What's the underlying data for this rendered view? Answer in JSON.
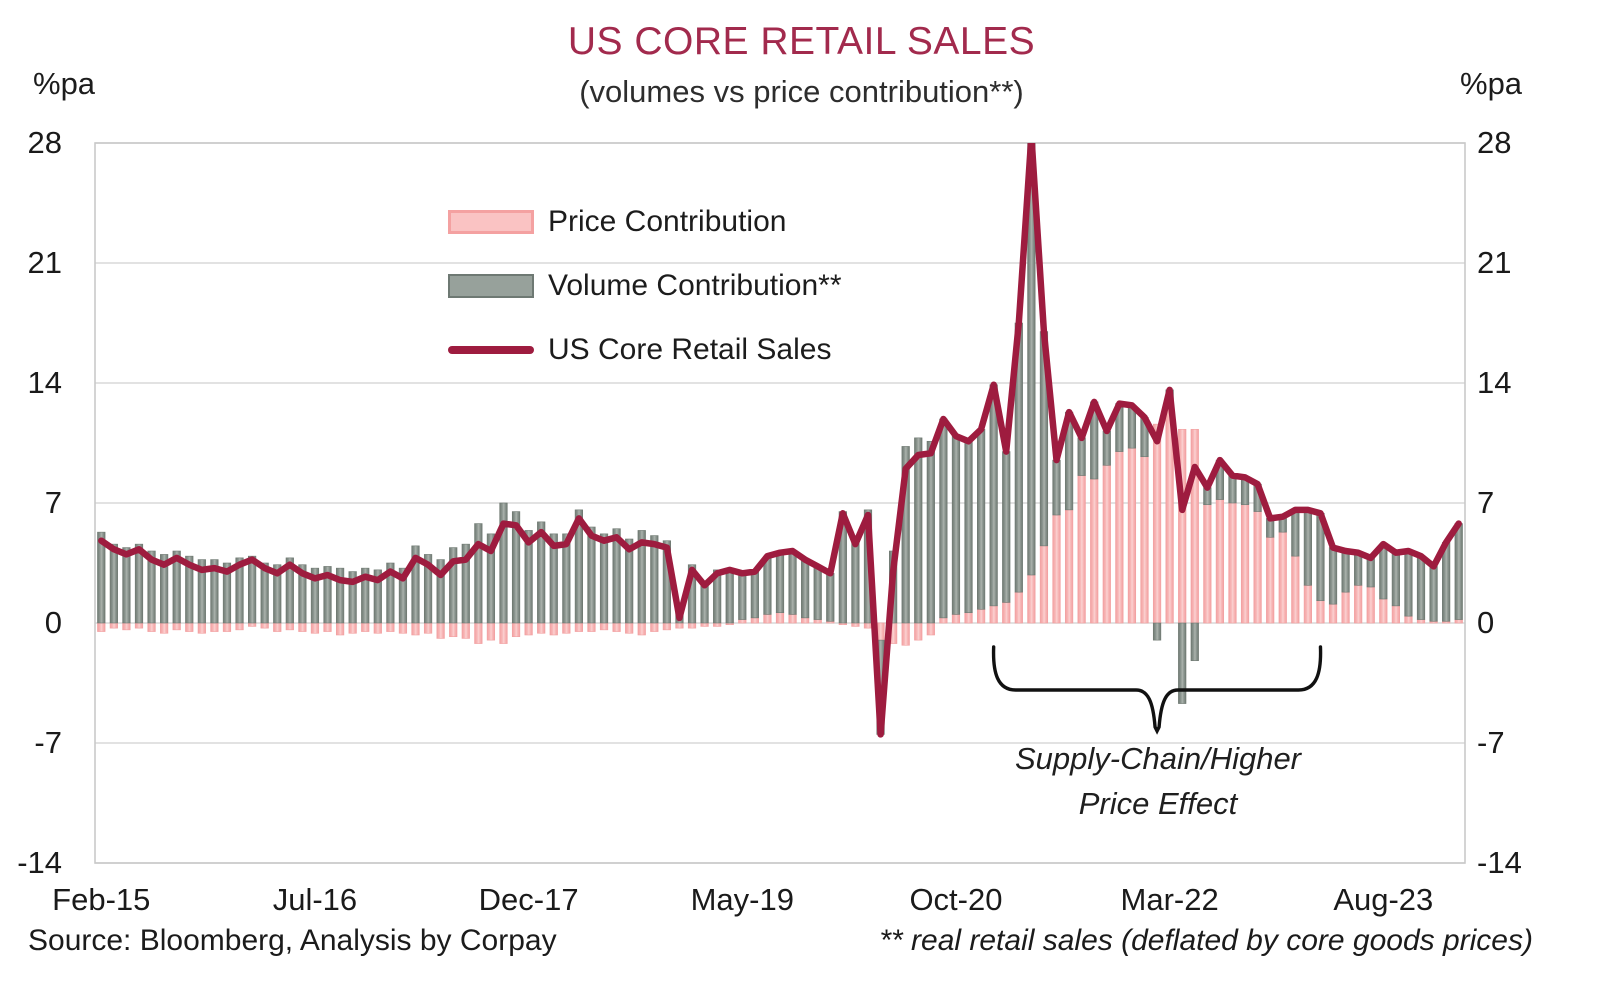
{
  "footer": {
    "source": "Source: Bloomberg, Analysis by Corpay",
    "footnote": "** real retail sales (deflated by core goods prices)"
  },
  "chart_data": {
    "type": "combo",
    "title": "US CORE RETAIL SALES",
    "subtitle": "(volumes vs price contribution**)",
    "ylabel_left": "%pa",
    "ylabel_right": "%pa",
    "ylim": [
      -14,
      28
    ],
    "yticks": [
      28,
      21,
      14,
      7,
      0,
      -7,
      -14
    ],
    "grid": "horizontal",
    "legend_position": "inside-top-left-of-plot",
    "colors": {
      "price_fill": "#F8B9B9",
      "price_edge": "#F2A0A1",
      "price_light": "#FBD2D2",
      "volume_fill": "#8F9993",
      "volume_edge": "#6F7972",
      "volume_light": "#ACB3AD",
      "line": "#9E1C3F",
      "title": "#A22A4D",
      "grid": "#D8D8D8",
      "border": "#C9C9C9",
      "annotation": "#111111"
    },
    "months": [
      "Feb-15",
      "Mar-15",
      "Apr-15",
      "May-15",
      "Jun-15",
      "Jul-15",
      "Aug-15",
      "Sep-15",
      "Oct-15",
      "Nov-15",
      "Dec-15",
      "Jan-16",
      "Feb-16",
      "Mar-16",
      "Apr-16",
      "May-16",
      "Jun-16",
      "Jul-16",
      "Aug-16",
      "Sep-16",
      "Oct-16",
      "Nov-16",
      "Dec-16",
      "Jan-17",
      "Feb-17",
      "Mar-17",
      "Apr-17",
      "May-17",
      "Jun-17",
      "Jul-17",
      "Aug-17",
      "Sep-17",
      "Oct-17",
      "Nov-17",
      "Dec-17",
      "Jan-18",
      "Feb-18",
      "Mar-18",
      "Apr-18",
      "May-18",
      "Jun-18",
      "Jul-18",
      "Aug-18",
      "Sep-18",
      "Oct-18",
      "Nov-18",
      "Dec-18",
      "Jan-19",
      "Feb-19",
      "Mar-19",
      "Apr-19",
      "May-19",
      "Jun-19",
      "Jul-19",
      "Aug-19",
      "Sep-19",
      "Oct-19",
      "Nov-19",
      "Dec-19",
      "Jan-20",
      "Feb-20",
      "Mar-20",
      "Apr-20",
      "May-20",
      "Jun-20",
      "Jul-20",
      "Aug-20",
      "Sep-20",
      "Oct-20",
      "Nov-20",
      "Dec-20",
      "Jan-21",
      "Feb-21",
      "Mar-21",
      "Apr-21",
      "May-21",
      "Jun-21",
      "Jul-21",
      "Aug-21",
      "Sep-21",
      "Oct-21",
      "Nov-21",
      "Dec-21",
      "Jan-22",
      "Feb-22",
      "Mar-22",
      "Apr-22",
      "May-22",
      "Jun-22",
      "Jul-22",
      "Aug-22",
      "Sep-22",
      "Oct-22",
      "Nov-22",
      "Dec-22",
      "Jan-23",
      "Feb-23",
      "Mar-23",
      "Apr-23",
      "May-23",
      "Jun-23",
      "Jul-23",
      "Aug-23",
      "Sep-23",
      "Oct-23",
      "Nov-23",
      "Dec-23",
      "Jan-24",
      "Feb-24"
    ],
    "xtick_indices": [
      0,
      17,
      34,
      51,
      68,
      85,
      102
    ],
    "xtick_labels": [
      "Feb-15",
      "Jul-16",
      "Dec-17",
      "May-19",
      "Oct-20",
      "Mar-22",
      "Aug-23"
    ],
    "series": [
      {
        "name": "Price Contribution",
        "type": "bar",
        "values": [
          -0.5,
          -0.3,
          -0.4,
          -0.3,
          -0.5,
          -0.6,
          -0.4,
          -0.5,
          -0.6,
          -0.5,
          -0.5,
          -0.4,
          -0.2,
          -0.3,
          -0.5,
          -0.4,
          -0.5,
          -0.6,
          -0.5,
          -0.7,
          -0.6,
          -0.5,
          -0.6,
          -0.5,
          -0.6,
          -0.7,
          -0.6,
          -0.9,
          -0.8,
          -0.9,
          -1.2,
          -1.0,
          -1.2,
          -0.8,
          -0.7,
          -0.6,
          -0.7,
          -0.6,
          -0.5,
          -0.5,
          -0.4,
          -0.5,
          -0.6,
          -0.7,
          -0.5,
          -0.4,
          -0.3,
          -0.3,
          -0.2,
          -0.2,
          -0.1,
          0.2,
          0.3,
          0.5,
          0.6,
          0.5,
          0.3,
          0.2,
          0.1,
          -0.1,
          -0.2,
          -0.3,
          -1.0,
          -1.2,
          -1.3,
          -1.0,
          -0.7,
          0.3,
          0.5,
          0.6,
          0.8,
          1.0,
          1.2,
          1.8,
          2.8,
          4.5,
          6.3,
          6.6,
          8.6,
          8.4,
          9.2,
          10.0,
          10.2,
          9.7,
          11.6,
          12.5,
          11.3,
          11.3,
          6.9,
          7.2,
          7.0,
          6.9,
          6.5,
          5.0,
          5.3,
          3.9,
          2.2,
          1.3,
          1.1,
          1.8,
          2.2,
          2.1,
          1.4,
          1.0,
          0.4,
          0.2,
          0.1,
          0.1,
          0.2
        ]
      },
      {
        "name": "Volume Contribution**",
        "type": "bar",
        "values": [
          5.3,
          4.6,
          4.4,
          4.6,
          4.2,
          4.0,
          4.2,
          3.9,
          3.7,
          3.7,
          3.5,
          3.8,
          3.9,
          3.5,
          3.4,
          3.8,
          3.4,
          3.2,
          3.3,
          3.2,
          3.0,
          3.2,
          3.1,
          3.5,
          3.2,
          4.5,
          4.0,
          3.7,
          4.4,
          4.6,
          5.8,
          5.2,
          7.0,
          6.5,
          5.4,
          5.9,
          5.2,
          5.2,
          6.6,
          5.6,
          5.2,
          5.5,
          4.9,
          5.4,
          5.1,
          4.8,
          0.6,
          3.4,
          2.4,
          3.1,
          3.2,
          2.7,
          2.7,
          3.4,
          3.5,
          3.7,
          3.4,
          3.1,
          2.8,
          6.5,
          4.8,
          6.6,
          -5.5,
          4.2,
          10.3,
          10.8,
          10.6,
          11.6,
          10.4,
          10.0,
          10.5,
          12.9,
          8.8,
          15.7,
          25.6,
          12.5,
          3.2,
          5.7,
          2.2,
          4.5,
          2.0,
          2.8,
          2.5,
          2.3,
          -1.0,
          1.1,
          -4.7,
          -2.2,
          1.0,
          2.3,
          1.6,
          1.6,
          1.6,
          1.1,
          0.9,
          2.7,
          4.4,
          5.1,
          3.3,
          2.4,
          1.9,
          1.7,
          3.2,
          3.1,
          3.8,
          3.7,
          3.2,
          4.6,
          5.6
        ]
      },
      {
        "name": "US Core Retail Sales",
        "type": "line",
        "values": [
          4.8,
          4.3,
          4.0,
          4.3,
          3.7,
          3.4,
          3.8,
          3.4,
          3.1,
          3.2,
          3.0,
          3.4,
          3.7,
          3.2,
          2.9,
          3.4,
          2.9,
          2.6,
          2.8,
          2.5,
          2.4,
          2.7,
          2.5,
          3.0,
          2.6,
          3.8,
          3.4,
          2.8,
          3.6,
          3.7,
          4.6,
          4.2,
          5.8,
          5.7,
          4.7,
          5.3,
          4.5,
          4.6,
          6.1,
          5.1,
          4.8,
          5.0,
          4.3,
          4.7,
          4.6,
          4.4,
          0.3,
          3.1,
          2.2,
          2.9,
          3.1,
          2.9,
          3.0,
          3.9,
          4.1,
          4.2,
          3.7,
          3.3,
          2.9,
          6.4,
          4.6,
          6.3,
          -6.5,
          3.0,
          9.0,
          9.8,
          9.9,
          11.9,
          10.9,
          10.6,
          11.3,
          13.9,
          10.0,
          17.5,
          28.4,
          17.0,
          9.5,
          12.3,
          10.8,
          12.9,
          11.2,
          12.8,
          12.7,
          12.0,
          10.6,
          13.6,
          6.6,
          9.1,
          7.9,
          9.5,
          8.6,
          8.5,
          8.1,
          6.1,
          6.2,
          6.6,
          6.6,
          6.4,
          4.4,
          4.2,
          4.1,
          3.8,
          4.6,
          4.1,
          4.2,
          3.9,
          3.3,
          4.7,
          5.8
        ]
      }
    ],
    "annotation": {
      "line1": "Supply-Chain/Higher",
      "line2": "Price Effect",
      "brace_from_month_index": 71,
      "brace_to_month_index": 97
    }
  }
}
